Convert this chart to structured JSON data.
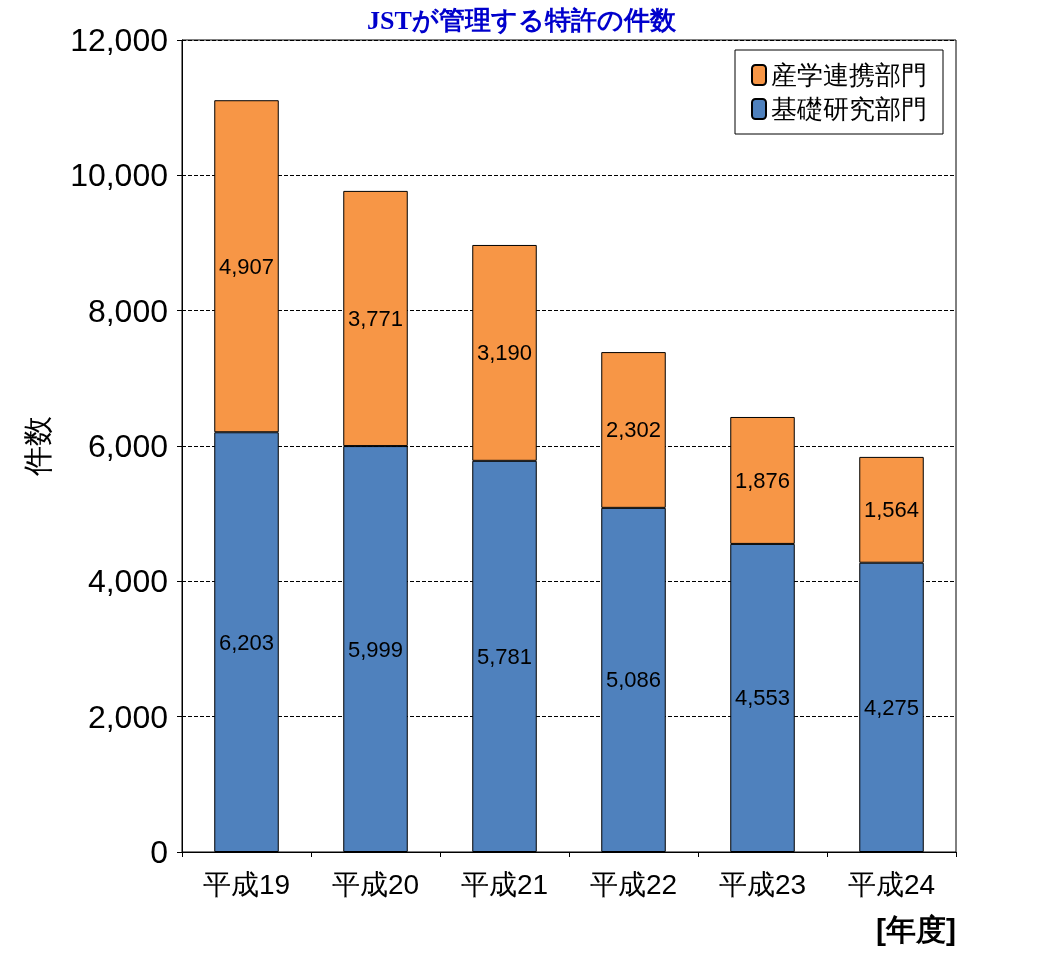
{
  "chart_data": {
    "type": "bar",
    "title": "JSTが管理する特許の件数",
    "xlabel": "[年度]",
    "ylabel": "件数",
    "categories": [
      "平成19",
      "平成20",
      "平成21",
      "平成22",
      "平成23",
      "平成24"
    ],
    "stacked": true,
    "legend": "top right",
    "grid": "y",
    "ylim": [
      0,
      12000
    ],
    "yticks": [
      0,
      {
        "value": 2000,
        "label": "2,000"
      },
      {
        "value": 4000,
        "label": "4,000"
      },
      {
        "value": 6000,
        "label": "6,000"
      },
      {
        "value": 8000,
        "label": "8,000"
      },
      {
        "value": 10000,
        "label": "10,000"
      },
      {
        "value": 12000,
        "label": "12,000"
      }
    ],
    "series": [
      {
        "name": "基礎研究部門",
        "color": "#4f81bd",
        "values": [
          6203,
          5999,
          5781,
          5086,
          4553,
          4275
        ],
        "value_labels": [
          "6,203",
          "5,999",
          "5,781",
          "5,086",
          "4,553",
          "4,275"
        ]
      },
      {
        "name": "産学連携部門",
        "color": "#f79646",
        "values": [
          4907,
          3771,
          3190,
          2302,
          1876,
          1564
        ],
        "value_labels": [
          "4,907",
          "3,771",
          "3,190",
          "2,302",
          "1,876",
          "1,564"
        ]
      }
    ]
  }
}
